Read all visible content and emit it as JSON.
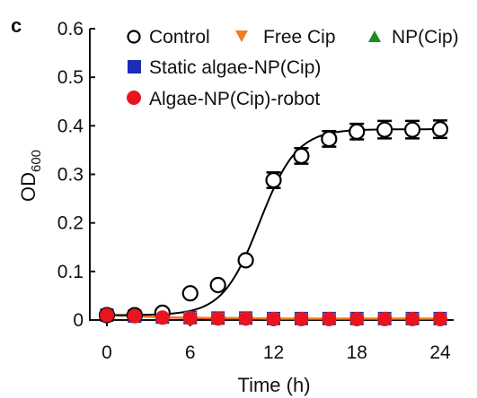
{
  "panel_label": "c",
  "chart_data": {
    "type": "scatter",
    "title": "",
    "xlabel": "Time (h)",
    "ylabel_main": "OD",
    "ylabel_sub": "600",
    "xlim": [
      0,
      24
    ],
    "ylim": [
      0,
      0.6
    ],
    "x_ticks": [
      0,
      6,
      12,
      18,
      24
    ],
    "x_tick_labels": [
      "0",
      "6",
      "12",
      "18",
      "24"
    ],
    "y_ticks": [
      0,
      0.1,
      0.2,
      0.3,
      0.4,
      0.5,
      0.6
    ],
    "y_tick_labels": [
      "0",
      "0.1",
      "0.2",
      "0.3",
      "0.4",
      "0.5",
      "0.6"
    ],
    "grid": false,
    "legend_position": "top",
    "series": [
      {
        "name": "Control",
        "marker": "circle-open",
        "color": "#000000",
        "x": [
          0,
          2,
          4,
          6,
          8,
          10,
          12,
          14,
          16,
          18,
          20,
          22,
          24
        ],
        "y": [
          0.01,
          0.01,
          0.015,
          0.055,
          0.072,
          0.123,
          0.288,
          0.338,
          0.373,
          0.388,
          0.392,
          0.392,
          0.393
        ],
        "error": [
          0.005,
          0.005,
          0.005,
          0.005,
          0.005,
          0.006,
          0.016,
          0.016,
          0.016,
          0.016,
          0.018,
          0.018,
          0.018
        ]
      },
      {
        "name": "Free Cip",
        "marker": "triangle-down",
        "color": "#f47b20",
        "x": [
          0,
          2,
          4,
          6,
          8,
          10,
          12,
          14,
          16,
          18,
          20,
          22,
          24
        ],
        "y": [
          0.01,
          0.008,
          0.006,
          0.005,
          0.004,
          0.004,
          0.003,
          0.003,
          0.003,
          0.003,
          0.003,
          0.003,
          0.003
        ]
      },
      {
        "name": "NP(Cip)",
        "marker": "triangle-up",
        "color": "#1e8c1e",
        "x": [
          0,
          2,
          4,
          6,
          8,
          10,
          12,
          14,
          16,
          18,
          20,
          22,
          24
        ],
        "y": [
          0.01,
          0.008,
          0.006,
          0.005,
          0.004,
          0.004,
          0.003,
          0.003,
          0.003,
          0.003,
          0.003,
          0.003,
          0.003
        ]
      },
      {
        "name": "Static algae-NP(Cip)",
        "marker": "square",
        "color": "#1a2db5",
        "x": [
          0,
          2,
          4,
          6,
          8,
          10,
          12,
          14,
          16,
          18,
          20,
          22,
          24
        ],
        "y": [
          0.01,
          0.008,
          0.006,
          0.005,
          0.004,
          0.004,
          0.003,
          0.003,
          0.003,
          0.003,
          0.003,
          0.003,
          0.003
        ]
      },
      {
        "name": "Algae-NP(Cip)-robot",
        "marker": "circle",
        "color": "#e8141e",
        "x": [
          0,
          2,
          4,
          6,
          8,
          10,
          12,
          14,
          16,
          18,
          20,
          22,
          24
        ],
        "y": [
          0.01,
          0.008,
          0.005,
          0.004,
          0.003,
          0.003,
          0.002,
          0.002,
          0.002,
          0.002,
          0.002,
          0.002,
          0.002
        ]
      }
    ],
    "fit_curves": [
      {
        "series": "Control",
        "kind": "logistic",
        "bottom": 0.01,
        "top": 0.393,
        "midpoint_h": 11.0,
        "rate": 0.75,
        "color": "#000000"
      },
      {
        "series": "Free Cip",
        "kind": "flat",
        "color": "#f47b20"
      },
      {
        "series": "NP(Cip)",
        "kind": "flat",
        "color": "#1e8c1e"
      },
      {
        "series": "Algae-NP(Cip)-robot",
        "kind": "flat",
        "color": "#e8141e"
      }
    ]
  }
}
